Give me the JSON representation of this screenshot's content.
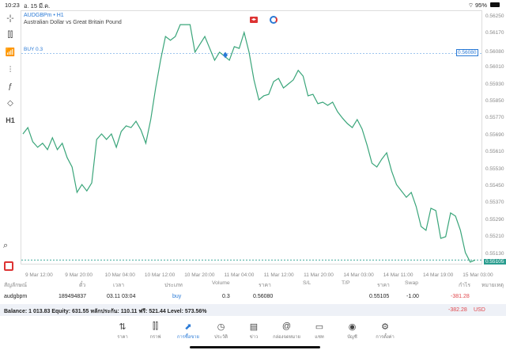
{
  "status": {
    "time": "10:23",
    "date": "อ. 15 มี.ค.",
    "battery": "95%"
  },
  "chart": {
    "symbol": "AUDGBPm",
    "timeframe": "H1",
    "description": "Australian Dollar vs Great Britain Pound",
    "buy_label": "BUY 0.3",
    "current_price": "0.55105",
    "open_price": "0.56080",
    "line_color": "#3aa57a",
    "accent": "#2a7ad6"
  },
  "toolbar": [
    {
      "icon": "crosshair-icon",
      "t": "-¦-"
    },
    {
      "icon": "candles-icon",
      "t": "⫿⫿"
    },
    {
      "icon": "indicators-icon",
      "t": "📶"
    },
    {
      "icon": "sliders-icon",
      "t": "⫶"
    },
    {
      "icon": "function-icon",
      "t": "ƒ"
    },
    {
      "icon": "shapes-icon",
      "t": "◇"
    },
    {
      "icon": "timeframe-label",
      "t": "H1"
    }
  ],
  "chart_data": {
    "type": "line",
    "ylim": [
      0.5507,
      0.5629
    ],
    "y_ticks": [
      "0.56250",
      "0.56170",
      "0.56080",
      "0.56010",
      "0.55930",
      "0.55850",
      "0.55770",
      "0.55690",
      "0.55610",
      "0.55530",
      "0.55450",
      "0.55370",
      "0.55290",
      "0.55210",
      "0.55130"
    ],
    "x_ticks": [
      "9 Mar 12:00",
      "9 Mar 20:00",
      "10 Mar 04:00",
      "10 Mar 12:00",
      "10 Mar 20:00",
      "11 Mar 04:00",
      "11 Mar 12:00",
      "11 Mar 20:00",
      "14 Mar 03:00",
      "14 Mar 11:00",
      "14 Mar 19:00",
      "15 Mar 03:00"
    ],
    "values": [
      0.557,
      0.5573,
      0.55663,
      0.55637,
      0.55656,
      0.55626,
      0.55682,
      0.55626,
      0.55656,
      0.55588,
      0.55544,
      0.55424,
      0.55461,
      0.55431,
      0.55469,
      0.55674,
      0.557,
      0.55674,
      0.557,
      0.55637,
      0.55712,
      0.55738,
      0.5573,
      0.5576,
      0.55719,
      0.55656,
      0.55768,
      0.55917,
      0.56048,
      0.5616,
      0.56142,
      0.5616,
      0.56216,
      0.56216,
      0.56216,
      0.56086,
      0.56123,
      0.5616,
      0.56104,
      0.56048,
      0.56086,
      0.56067,
      0.56048,
      0.56112,
      0.56104,
      0.56179,
      0.56086,
      0.55955,
      0.55861,
      0.5588,
      0.55887,
      0.55947,
      0.55962,
      0.55917,
      0.55936,
      0.55955,
      0.56,
      0.55973,
      0.5588,
      0.55887,
      0.55843,
      0.5585,
      0.55835,
      0.5585,
      0.55805,
      0.55775,
      0.55749,
      0.5573,
      0.55768,
      0.55723,
      0.55648,
      0.55562,
      0.55544,
      0.55581,
      0.55611,
      0.55525,
      0.55461,
      0.55431,
      0.55401,
      0.55424,
      0.55357,
      0.55263,
      0.55245,
      0.55349,
      0.55338,
      0.55207,
      0.55215,
      0.55327,
      0.55312,
      0.55245,
      0.5514,
      0.55095,
      0.55105
    ]
  },
  "table": {
    "headers": [
      "สัญลักษณ์",
      "ตั๋ว",
      "เวลา",
      "ประเภท",
      "Volume",
      "ราคา",
      "S/L",
      "T/P",
      "ราคา",
      "Swap",
      "กำไร",
      "หมายเหตุ"
    ],
    "row": {
      "symbol": "audgbpm",
      "ticket": "189494837",
      "time": "03.11 03:04",
      "type": "buy",
      "volume": "0.3",
      "open_price": "0.56080",
      "price": "0.55105",
      "swap": "-1.00",
      "profit": "-381.28"
    }
  },
  "balance": {
    "text": "Balance: 1 013.83 Equity: 631.55 หลักประกัน: 110.11 ฟรี: 521.44 Level: 573.56%",
    "total": "-382.28",
    "currency": "USD"
  },
  "nav": [
    {
      "label": "ราคา",
      "icon": "quotes-icon",
      "t": "⇅"
    },
    {
      "label": "กราฟ",
      "icon": "chart-icon",
      "t": "⫿⫿"
    },
    {
      "label": "การซื้อขาย",
      "icon": "trade-icon",
      "t": "⬈",
      "active": true
    },
    {
      "label": "ประวัติ",
      "icon": "history-icon",
      "t": "◷"
    },
    {
      "label": "ข่าว",
      "icon": "news-icon",
      "t": "▤"
    },
    {
      "label": "กล่องจดหมาย",
      "icon": "mailbox-icon",
      "t": "@"
    },
    {
      "label": "แชท",
      "icon": "chat-icon",
      "t": "▭"
    },
    {
      "label": "บัญชี",
      "icon": "account-icon",
      "t": "◉"
    },
    {
      "label": "การตั้งค่า",
      "icon": "settings-icon",
      "t": "⚙"
    }
  ]
}
